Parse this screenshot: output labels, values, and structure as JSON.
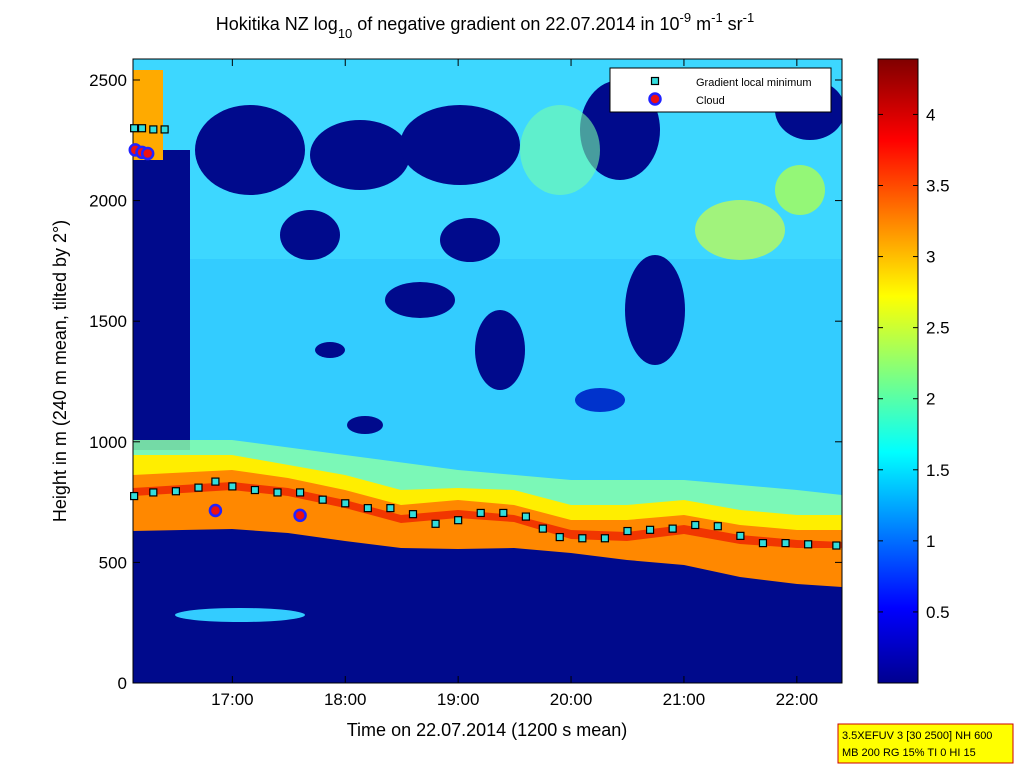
{
  "chart_data": {
    "type": "scatter",
    "title": [
      "Hokitika NZ log",
      "10",
      " of negative gradient on 22.07.2014 in 10",
      "-9",
      " m",
      "-1",
      " sr",
      "-1"
    ],
    "xlabel": "Time on 22.07.2014 (1200 s mean)",
    "ylabel": "Height in m (240 m mean, tilted by 2°)",
    "xlim": [
      16.12,
      22.4
    ],
    "ylim": [
      0,
      2587
    ],
    "xticks": [
      {
        "value": 17,
        "label": "17:00"
      },
      {
        "value": 18,
        "label": "18:00"
      },
      {
        "value": 19,
        "label": "19:00"
      },
      {
        "value": 20,
        "label": "20:00"
      },
      {
        "value": 21,
        "label": "21:00"
      },
      {
        "value": 22,
        "label": "22:00"
      }
    ],
    "yticks": [
      0,
      500,
      1000,
      1500,
      2000,
      2500
    ],
    "colorbar": {
      "clim": [
        0,
        4.39
      ],
      "ticks": [
        0.5,
        1,
        1.5,
        2,
        2.5,
        3,
        3.5,
        4
      ],
      "colormap": "jet"
    },
    "legend": "upper right",
    "series": [
      {
        "name": "Gradient local minimum",
        "color": "#33dddd",
        "marker": "square",
        "x": [
          16.13,
          16.2,
          16.3,
          16.4,
          16.13,
          16.3,
          16.5,
          16.7,
          16.85,
          17.0,
          17.2,
          17.4,
          17.6,
          17.8,
          18.0,
          18.2,
          18.4,
          18.6,
          18.8,
          19.0,
          19.2,
          19.4,
          19.6,
          19.75,
          19.9,
          20.1,
          20.3,
          20.5,
          20.7,
          20.9,
          21.1,
          21.3,
          21.5,
          21.7,
          21.9,
          22.1,
          22.35
        ],
        "values": [
          2300,
          2300,
          2295,
          2295,
          775,
          790,
          795,
          810,
          835,
          815,
          800,
          790,
          790,
          760,
          745,
          725,
          725,
          700,
          660,
          675,
          705,
          705,
          690,
          640,
          605,
          600,
          600,
          630,
          635,
          640,
          655,
          650,
          610,
          580,
          580,
          575,
          570
        ]
      },
      {
        "name": "Cloud",
        "color": "#ee1111",
        "marker": "circle",
        "x": [
          16.14,
          16.2,
          16.25,
          16.85,
          17.6
        ],
        "values": [
          2210,
          2200,
          2195,
          715,
          695
        ]
      }
    ],
    "info": [
      "3.5XEFUV 3 [30 2500] NH 600",
      "MB 200 RG 15% TI 0 HI 15"
    ]
  }
}
